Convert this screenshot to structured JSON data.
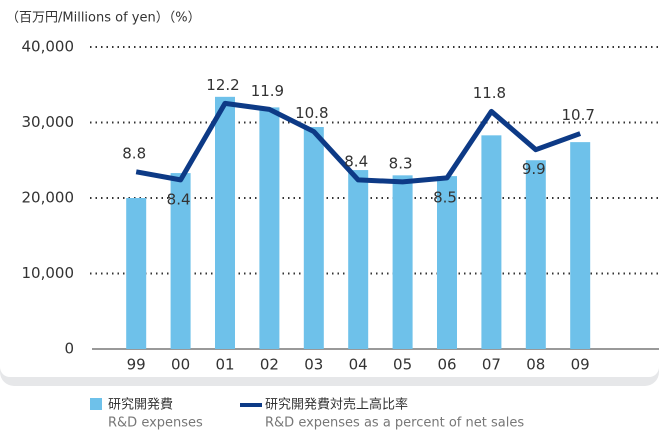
{
  "chart_data": {
    "type": "bar+line",
    "y_label": "（百万円/Millions of yen）（%）",
    "categories": [
      "99",
      "00",
      "01",
      "02",
      "03",
      "04",
      "05",
      "06",
      "07",
      "08",
      "09"
    ],
    "series": [
      {
        "name": "研究開発費",
        "name_en": "R&D expenses",
        "type": "bar",
        "color": "#6ec1ea",
        "values": [
          20000,
          23300,
          33400,
          32000,
          29400,
          23700,
          23000,
          22900,
          28300,
          25000,
          27400
        ]
      },
      {
        "name": "研究開発費対売上高比率",
        "name_en": "R&D expenses as a percent of net sales",
        "type": "line",
        "color": "#0d3a86",
        "axis": "y2",
        "values": [
          8.8,
          8.4,
          12.2,
          11.9,
          10.8,
          8.4,
          8.3,
          8.5,
          11.8,
          9.9,
          10.7
        ]
      }
    ],
    "ylim": [
      0,
      40000
    ],
    "yticks": [
      {
        "value": 0,
        "label": "0"
      },
      {
        "value": 10000,
        "label": "10,000"
      },
      {
        "value": 20000,
        "label": "20,000"
      },
      {
        "value": 30000,
        "label": "30,000"
      },
      {
        "value": 40000,
        "label": "40,000"
      }
    ],
    "y2lim": [
      0,
      15
    ],
    "grid": true
  }
}
